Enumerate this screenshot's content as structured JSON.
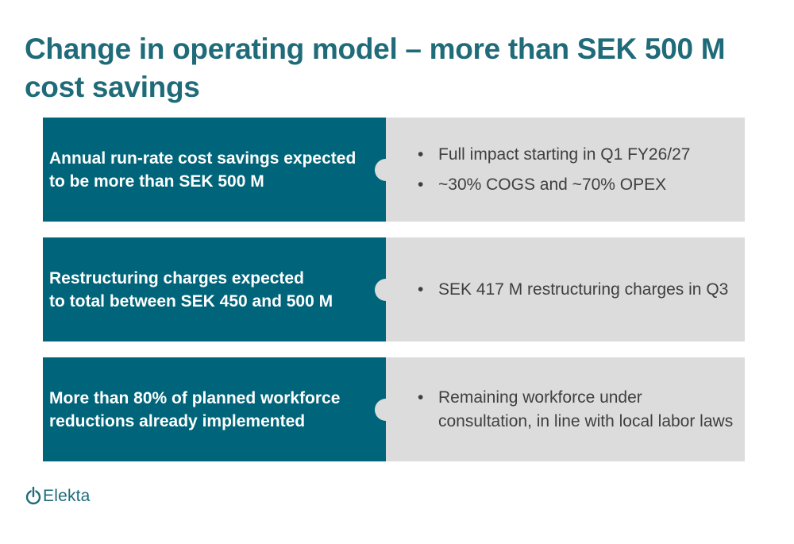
{
  "slide": {
    "title": "Change in operating model – more than SEK 500 M cost savings",
    "rows": [
      {
        "left": "Annual run-rate cost savings expected\nto be more than SEK 500 M",
        "bullets": [
          "Full impact starting in Q1 FY26/27",
          "~30% COGS and ~70% OPEX"
        ]
      },
      {
        "left": "Restructuring charges expected\nto total between SEK 450 and 500 M",
        "bullets": [
          "SEK 417 M restructuring charges in Q3"
        ]
      },
      {
        "left": "More than 80% of planned workforce\nreductions already implemented",
        "bullets": [
          "Remaining workforce under\nconsultation, in line with local labor laws"
        ]
      }
    ],
    "bullet_symbol": "•"
  },
  "logo": {
    "text": "Elekta",
    "icon": "elekta-logo-icon"
  },
  "colors": {
    "title": "#1f6b7a",
    "left_panel": "#00657a",
    "right_panel": "#dcdcdc",
    "bullet_text": "#3f3f3f"
  }
}
